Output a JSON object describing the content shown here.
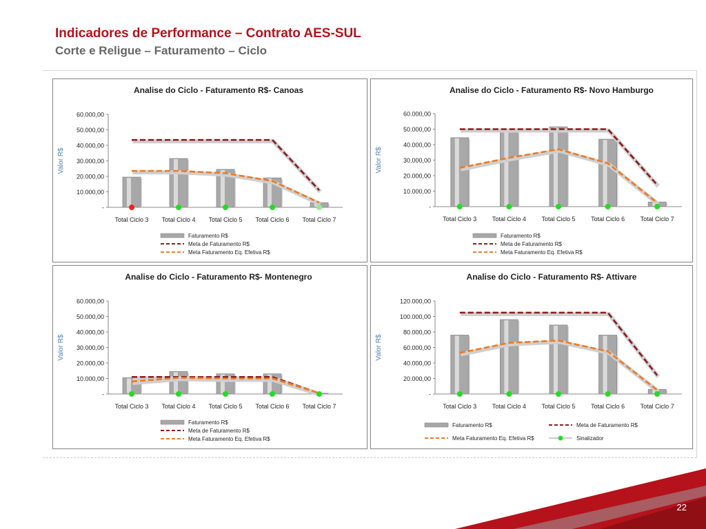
{
  "title": "Indicadores de Performance – Contrato AES-SUL",
  "subtitle": "Corte e Religue – Faturamento – Ciclo",
  "page_number": "22",
  "colors": {
    "title": "#b5121b",
    "subtitle": "#666666",
    "bar": "#a8a8a8",
    "meta": "#8b1a1a",
    "efetiva": "#f07a1e",
    "signal_green": "#22dd22",
    "signal_red": "#ee2222",
    "ylabel": "#4f81bd"
  },
  "chart_data": [
    {
      "type": "bar",
      "title": "Analise do Ciclo - Faturamento R$- Canoas",
      "ylabel": "Valor R$",
      "categories": [
        "Total Ciclo 3",
        "Total Ciclo 4",
        "Total Ciclo 5",
        "Total Ciclo 6",
        "Total Ciclo 7"
      ],
      "ylim": [
        0,
        60000
      ],
      "yticks": [
        "-",
        "10.000,00",
        "20.000,00",
        "30.000,00",
        "40.000,00",
        "50.000,00",
        "60.000,00"
      ],
      "series": [
        {
          "name": "Faturamento R$",
          "kind": "bar",
          "values": [
            19500,
            31500,
            24500,
            19000,
            3000
          ]
        },
        {
          "name": "Meta de Faturamento R$",
          "kind": "line",
          "values": [
            43500,
            43500,
            43500,
            43500,
            11000
          ]
        },
        {
          "name": "Meta Faturamento Eq. Efetiva R$",
          "kind": "line",
          "values": [
            23500,
            23500,
            22000,
            17000,
            3000
          ]
        }
      ],
      "signals": [
        "red",
        "green",
        "green",
        "green",
        "lightgreen"
      ],
      "legend": {
        "placement": "bottom",
        "items": [
          "Faturamento R$",
          "Meta de Faturamento R$",
          "Meta Faturamento Eq. Efetiva R$"
        ]
      },
      "grid": false
    },
    {
      "type": "bar",
      "title": "Analise do Ciclo - Faturamento R$- Novo Hamburgo",
      "ylabel": "Valor R$",
      "categories": [
        "Total Ciclo 3",
        "Total Ciclo 4",
        "Total Ciclo 5",
        "Total Ciclo 6",
        "Total Ciclo 7"
      ],
      "ylim": [
        0,
        60000
      ],
      "yticks": [
        "-",
        "10.000,00",
        "20.000,00",
        "30.000,00",
        "40.000,00",
        "50.000,00",
        "60.000,00"
      ],
      "series": [
        {
          "name": "Faturamento R$",
          "kind": "bar",
          "values": [
            44500,
            48500,
            51500,
            43500,
            3000
          ]
        },
        {
          "name": "Meta de Faturamento R$",
          "kind": "line",
          "values": [
            50000,
            50000,
            50000,
            50000,
            14000
          ]
        },
        {
          "name": "Meta Faturamento Eq. Efetiva R$",
          "kind": "line",
          "values": [
            25000,
            31500,
            37000,
            28000,
            2500
          ]
        }
      ],
      "signals": [
        "green",
        "green",
        "green",
        "green",
        "green"
      ],
      "legend": {
        "placement": "bottom",
        "items": [
          "Faturamento R$",
          "Meta de Faturamento R$",
          "Meta Faturamento Eq. Efetiva R$"
        ]
      },
      "grid": false
    },
    {
      "type": "bar",
      "title": "Analise do Ciclo - Faturamento R$- Montenegro",
      "ylabel": "Valor R$",
      "categories": [
        "Total Ciclo 3",
        "Total Ciclo 4",
        "Total Ciclo 5",
        "Total Ciclo 6",
        "Total Ciclo 7"
      ],
      "ylim": [
        0,
        60000
      ],
      "yticks": [
        "-",
        "10.000,00",
        "20.000,00",
        "30.000,00",
        "40.000,00",
        "50.000,00",
        "60.000,00"
      ],
      "series": [
        {
          "name": "Faturamento R$",
          "kind": "bar",
          "values": [
            10500,
            14500,
            13000,
            13000,
            500
          ]
        },
        {
          "name": "Meta de Faturamento R$",
          "kind": "line",
          "values": [
            11000,
            11000,
            11000,
            11000,
            500
          ]
        },
        {
          "name": "Meta Faturamento Eq. Efetiva R$",
          "kind": "line",
          "values": [
            8000,
            10500,
            10000,
            10000,
            500
          ]
        }
      ],
      "signals": [
        "green",
        "green",
        "green",
        "green",
        "green"
      ],
      "legend": {
        "placement": "bottom",
        "items": [
          "Faturamento R$",
          "Meta de Faturamento R$",
          "Meta Faturamento Eq. Efetiva R$"
        ]
      },
      "grid": false
    },
    {
      "type": "bar",
      "title": "Analise do Ciclo - Faturamento R$- Attivare",
      "ylabel": "Valor R$",
      "categories": [
        "Total Ciclo 3",
        "Total Ciclo 4",
        "Total Ciclo 5",
        "Total Ciclo 6",
        "Total Ciclo 7"
      ],
      "ylim": [
        0,
        120000
      ],
      "yticks": [
        "-",
        "20.000,00",
        "40.000,00",
        "60.000,00",
        "80.000,00",
        "100.000,00",
        "120.000,00"
      ],
      "series": [
        {
          "name": "Faturamento R$",
          "kind": "bar",
          "values": [
            76000,
            96000,
            89000,
            76000,
            6000
          ]
        },
        {
          "name": "Meta de Faturamento R$",
          "kind": "line",
          "values": [
            105000,
            105000,
            105000,
            105000,
            24000
          ]
        },
        {
          "name": "Meta Faturamento Eq. Efetiva R$",
          "kind": "line",
          "values": [
            53000,
            66000,
            69000,
            55000,
            5000
          ]
        },
        {
          "name": "Sinalizador",
          "kind": "marker"
        }
      ],
      "signals": [
        "green",
        "green",
        "green",
        "green",
        "green"
      ],
      "legend": {
        "placement": "bottom",
        "items": [
          "Faturamento R$",
          "Meta de Faturamento R$",
          "Meta Faturamento Eq. Efetiva R$",
          "Sinalizador"
        ]
      },
      "grid": false
    }
  ]
}
